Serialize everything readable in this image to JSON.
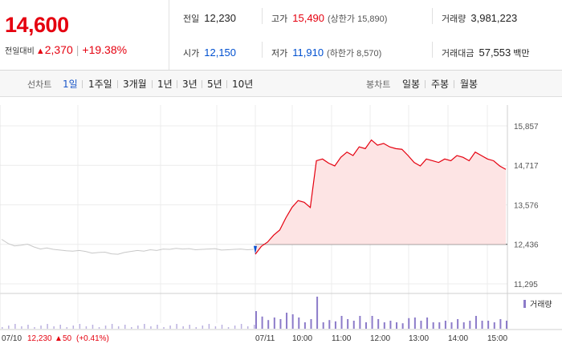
{
  "quote": {
    "price": "14,600",
    "change_label": "전일대비",
    "change_symbol": "▲",
    "change_value": "2,370",
    "change_pct": "+19.38%"
  },
  "stats": {
    "prev_close_label": "전일",
    "prev_close": "12,230",
    "high_label": "고가",
    "high": "15,490",
    "upper_limit": "(상한가 15,890)",
    "volume_label": "거래량",
    "volume": "3,981,223",
    "open_label": "시가",
    "open": "12,150",
    "low_label": "저가",
    "low": "11,910",
    "lower_limit": "(하한가 8,570)",
    "trade_value_label": "거래대금",
    "trade_value": "57,553",
    "trade_value_unit": "백만"
  },
  "toolbar": {
    "line_label": "선차트",
    "periods": [
      "1일",
      "1주일",
      "3개월",
      "1년",
      "3년",
      "5년",
      "10년"
    ],
    "active_period": "1일",
    "candle_label": "봉차트",
    "candles": [
      "일봉",
      "주봉",
      "월봉"
    ]
  },
  "colors": {
    "up": "#e5000f",
    "down": "#0050d0",
    "fill": "#fde4e4",
    "volume": "#8c7bc9",
    "prev_line": "#c8c8c8"
  },
  "chart_data": {
    "type": "line",
    "y_ticks": [
      "15,857",
      "14,717",
      "13,576",
      "12,436",
      "11,295"
    ],
    "y_range": [
      11295,
      15857
    ],
    "reference_line": 12436,
    "x_labels": [
      "07/11",
      "10:00",
      "11:00",
      "12:00",
      "13:00",
      "14:00",
      "15:00"
    ],
    "previous_day": {
      "label": "07/10",
      "close": "12,230",
      "change_symbol": "▲",
      "change": "50",
      "change_pct": "(+0.41%)",
      "values": [
        12580,
        12460,
        12390,
        12410,
        12440,
        12360,
        12300,
        12330,
        12290,
        12270,
        12250,
        12240,
        12260,
        12230,
        12180,
        12200,
        12210,
        12160,
        12150,
        12200,
        12230,
        12260,
        12240,
        12280,
        12260,
        12300,
        12290,
        12320,
        12300,
        12310,
        12280,
        12290,
        12300,
        12310,
        12270,
        12280,
        12290,
        12300,
        12280,
        12290
      ]
    },
    "today": {
      "times": [
        "09:00",
        "09:05",
        "09:10",
        "09:15",
        "09:20",
        "09:30",
        "09:40",
        "09:50",
        "10:00",
        "10:05",
        "10:10",
        "10:20",
        "10:30",
        "10:40",
        "10:50",
        "11:00",
        "11:10",
        "11:20",
        "11:30",
        "11:40",
        "11:50",
        "12:00",
        "12:10",
        "12:20",
        "12:30",
        "12:40",
        "12:50",
        "13:00",
        "13:10",
        "13:20",
        "13:30",
        "13:40",
        "13:50",
        "14:00",
        "14:10",
        "14:20",
        "14:30",
        "14:40",
        "14:50",
        "15:00",
        "15:10",
        "15:20"
      ],
      "values": [
        12150,
        12380,
        12500,
        12700,
        12850,
        13200,
        13500,
        13700,
        13650,
        13500,
        14850,
        14900,
        14780,
        14700,
        14950,
        15100,
        15000,
        15250,
        15200,
        15450,
        15300,
        15350,
        15250,
        15200,
        15180,
        15000,
        14800,
        14700,
        14900,
        14850,
        14800,
        14900,
        14850,
        15000,
        14950,
        14850,
        15100,
        15000,
        14900,
        14850,
        14700,
        14600
      ]
    },
    "volume_label": "거래량"
  }
}
